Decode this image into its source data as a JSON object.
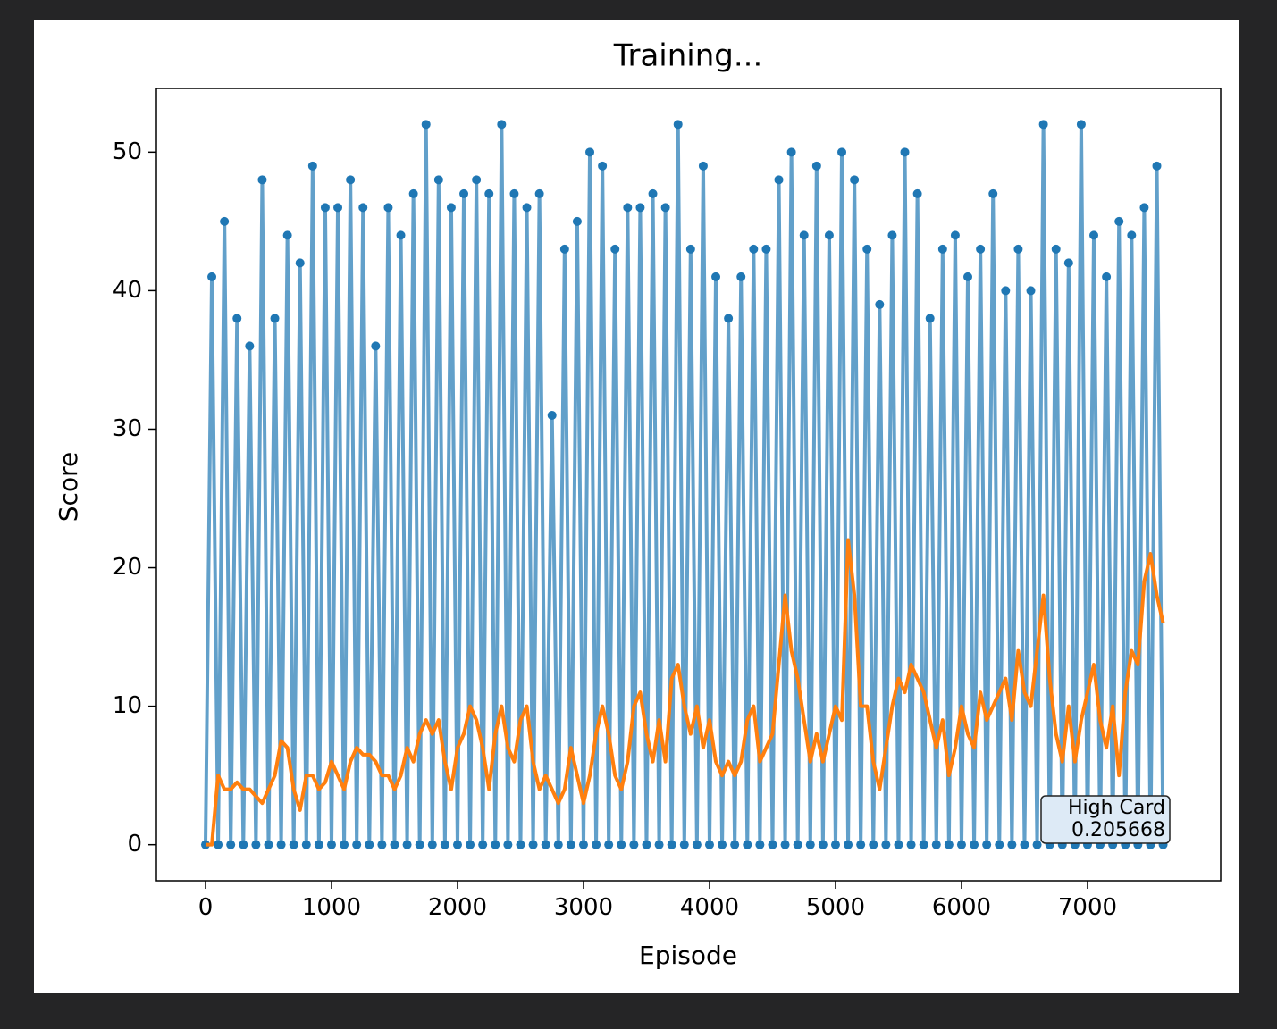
{
  "chart_data": {
    "type": "line",
    "title": "Training...",
    "x_label": "Episode",
    "y_label": "Score",
    "x": [
      0,
      50,
      100,
      150,
      200,
      250,
      300,
      350,
      400,
      450,
      500,
      550,
      600,
      650,
      700,
      750,
      800,
      850,
      900,
      950,
      1000,
      1050,
      1100,
      1150,
      1200,
      1250,
      1300,
      1350,
      1400,
      1450,
      1500,
      1550,
      1600,
      1650,
      1700,
      1750,
      1800,
      1850,
      1900,
      1950,
      2000,
      2050,
      2100,
      2150,
      2200,
      2250,
      2300,
      2350,
      2400,
      2450,
      2500,
      2550,
      2600,
      2650,
      2700,
      2750,
      2800,
      2850,
      2900,
      2950,
      3000,
      3050,
      3100,
      3150,
      3200,
      3250,
      3300,
      3350,
      3400,
      3450,
      3500,
      3550,
      3600,
      3650,
      3700,
      3750,
      3800,
      3850,
      3900,
      3950,
      4000,
      4050,
      4100,
      4150,
      4200,
      4250,
      4300,
      4350,
      4400,
      4450,
      4500,
      4550,
      4600,
      4650,
      4700,
      4750,
      4800,
      4850,
      4900,
      4950,
      5000,
      5050,
      5100,
      5150,
      5200,
      5250,
      5300,
      5350,
      5400,
      5450,
      5500,
      5550,
      5600,
      5650,
      5700,
      5750,
      5800,
      5850,
      5900,
      5950,
      6000,
      6050,
      6100,
      6150,
      6200,
      6250,
      6300,
      6350,
      6400,
      6450,
      6500,
      6550,
      6600,
      6650,
      6700,
      6750,
      6800,
      6850,
      6900,
      6950,
      7000,
      7050,
      7100,
      7150,
      7200,
      7250,
      7300,
      7350,
      7400,
      7450,
      7500,
      7550,
      7600
    ],
    "series": [
      {
        "color": "#1f77b4",
        "values": [
          0,
          41,
          0,
          45,
          0,
          38,
          0,
          36,
          0,
          48,
          0,
          38,
          0,
          44,
          0,
          42,
          0,
          49,
          0,
          46,
          0,
          46,
          0,
          48,
          0,
          46,
          0,
          36,
          0,
          46,
          0,
          44,
          0,
          47,
          0,
          52,
          0,
          48,
          0,
          46,
          0,
          47,
          0,
          48,
          0,
          47,
          0,
          52,
          0,
          47,
          0,
          46,
          0,
          47,
          0,
          31,
          0,
          43,
          0,
          45,
          0,
          50,
          0,
          49,
          0,
          43,
          0,
          46,
          0,
          46,
          0,
          47,
          0,
          46,
          0,
          52,
          0,
          43,
          0,
          49,
          0,
          41,
          0,
          38,
          0,
          41,
          0,
          43,
          0,
          43,
          0,
          48,
          0,
          50,
          0,
          44,
          0,
          49,
          0,
          44,
          0,
          50,
          0,
          48,
          0,
          43,
          0,
          39,
          0,
          44,
          0,
          50,
          0,
          47,
          0,
          38,
          0,
          43,
          0,
          44,
          0,
          41,
          0,
          43,
          0,
          47,
          0,
          40,
          0,
          43,
          0,
          40,
          0,
          52,
          0,
          43,
          0,
          42,
          0,
          52,
          0,
          44,
          0,
          41,
          0,
          45,
          0,
          44,
          0,
          46,
          0,
          49,
          0
        ]
      },
      {
        "color": "#ff7f0e",
        "values": [
          0,
          0,
          5,
          4,
          4,
          4.5,
          4,
          4,
          3.5,
          3,
          4,
          5,
          7.5,
          7,
          4,
          2.5,
          5,
          5,
          4,
          4.5,
          6,
          5,
          4,
          6,
          7,
          6.5,
          6.5,
          6,
          5,
          5,
          4,
          5,
          7,
          6,
          8,
          9,
          8,
          9,
          6,
          4,
          7,
          8,
          10,
          9,
          7,
          4,
          8,
          10,
          7,
          6,
          9,
          10,
          6,
          4,
          5,
          4,
          3,
          4,
          7,
          5,
          3,
          5,
          8,
          10,
          8,
          5,
          4,
          6,
          10,
          11,
          8,
          6,
          9,
          6,
          12,
          13,
          10,
          8,
          10,
          7,
          9,
          6,
          5,
          6,
          5,
          6,
          9,
          10,
          6,
          7,
          8,
          13,
          18,
          14,
          12,
          9,
          6,
          8,
          6,
          8,
          10,
          9,
          22,
          18,
          10,
          10,
          6,
          4,
          7,
          10,
          12,
          11,
          13,
          12,
          11,
          9,
          7,
          9,
          5,
          7,
          10,
          8,
          7,
          11,
          9,
          10,
          11,
          12,
          9,
          14,
          11,
          10,
          14,
          18,
          12,
          8,
          6,
          10,
          6,
          9,
          11,
          13,
          9,
          7,
          10,
          5,
          11,
          14,
          13,
          19,
          21,
          18,
          16
        ]
      }
    ],
    "xlim": [
      -390,
      8057
    ],
    "ylim": [
      -2.6,
      54.6
    ],
    "xticks": [
      0,
      1000,
      2000,
      3000,
      4000,
      5000,
      6000,
      7000
    ],
    "yticks": [
      0,
      10,
      20,
      30,
      40,
      50
    ],
    "annotation": {
      "title": "High Card",
      "value": "0.205668"
    }
  }
}
